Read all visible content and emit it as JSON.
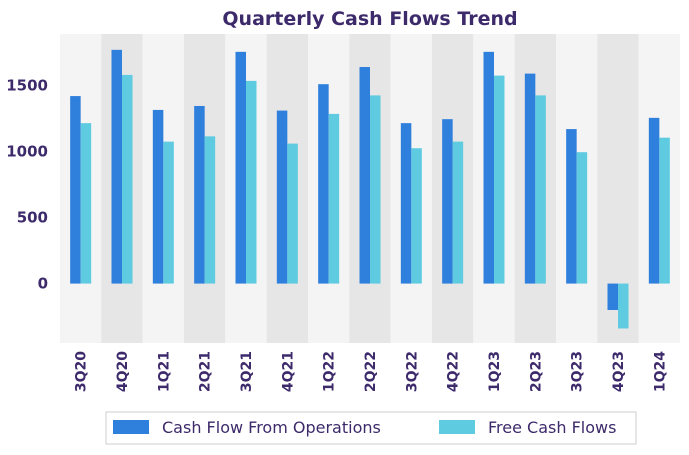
{
  "chart_data": {
    "type": "bar",
    "title": "Quarterly Cash Flows Trend",
    "xlabel": "",
    "ylabel": "",
    "categories": [
      "3Q20",
      "4Q20",
      "1Q21",
      "2Q21",
      "3Q21",
      "4Q21",
      "1Q22",
      "2Q22",
      "3Q22",
      "4Q22",
      "1Q23",
      "2Q23",
      "3Q23",
      "4Q23",
      "1Q24"
    ],
    "series": [
      {
        "name": "Cash Flow From Operations",
        "color": "#2f7fdc",
        "values": [
          1420,
          1770,
          1315,
          1345,
          1755,
          1310,
          1510,
          1640,
          1215,
          1245,
          1755,
          1590,
          1170,
          -200,
          1255
        ]
      },
      {
        "name": "Free Cash Flows",
        "color": "#5ecbe0",
        "values": [
          1215,
          1580,
          1075,
          1115,
          1535,
          1060,
          1285,
          1425,
          1025,
          1075,
          1575,
          1425,
          995,
          -340,
          1105
        ]
      }
    ],
    "ylim": [
      -450,
      1890
    ],
    "yticks": [
      0,
      500,
      1000,
      1500
    ],
    "grid": false,
    "band_colors": [
      "#f4f4f4",
      "#e6e6e6"
    ],
    "legend_position": "bottom"
  }
}
